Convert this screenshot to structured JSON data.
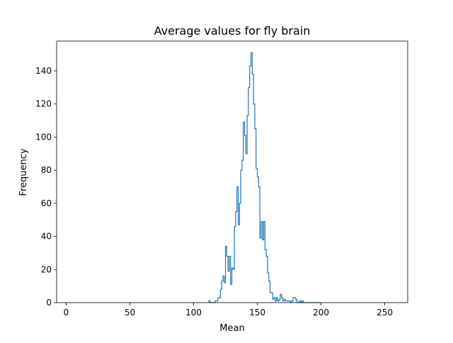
{
  "chart_data": {
    "type": "histogram",
    "title": "Average values for fly brain",
    "xlabel": "Mean",
    "ylabel": "Frequency",
    "xlim": [
      -7.5,
      268
    ],
    "ylim": [
      0,
      158
    ],
    "xticks": [
      0,
      50,
      100,
      150,
      200,
      250
    ],
    "yticks": [
      0,
      20,
      40,
      60,
      80,
      100,
      120,
      140
    ],
    "bin_width": 1,
    "color": "#1f77b4",
    "series": [
      {
        "bin_starts": [
          112,
          113,
          114,
          115,
          116,
          117,
          118,
          119,
          120,
          121,
          122,
          123,
          124,
          125,
          126,
          127,
          128,
          129,
          130,
          131,
          132,
          133,
          134,
          135,
          136,
          137,
          138,
          139,
          140,
          141,
          142,
          143,
          144,
          145,
          146,
          147,
          148,
          149,
          150,
          151,
          152,
          153,
          154,
          155,
          156,
          157,
          158,
          159,
          160,
          161,
          162,
          163,
          164,
          165,
          166,
          167,
          168,
          169,
          170,
          171,
          172,
          173,
          174,
          175,
          176,
          177,
          178,
          179,
          180,
          181,
          182,
          183,
          184,
          185,
          186,
          187,
          188,
          189,
          190,
          191,
          192,
          193,
          194,
          195,
          196,
          197,
          198
        ],
        "values": [
          1,
          0,
          0,
          0,
          0,
          1,
          1,
          3,
          3,
          8,
          13,
          16,
          12,
          34,
          28,
          19,
          28,
          11,
          21,
          20,
          46,
          55,
          70,
          47,
          60,
          80,
          86,
          109,
          101,
          90,
          113,
          130,
          143,
          151,
          138,
          120,
          105,
          81,
          76,
          70,
          39,
          49,
          38,
          49,
          32,
          28,
          18,
          13,
          6,
          6,
          2,
          3,
          1,
          3,
          1,
          2,
          5,
          3,
          1,
          2,
          1,
          1,
          1,
          1,
          0,
          1,
          3,
          3,
          2,
          0,
          0,
          1,
          0,
          1,
          0,
          0,
          0,
          0,
          0,
          0,
          0,
          0,
          0,
          0,
          0,
          0,
          0
        ]
      }
    ]
  }
}
